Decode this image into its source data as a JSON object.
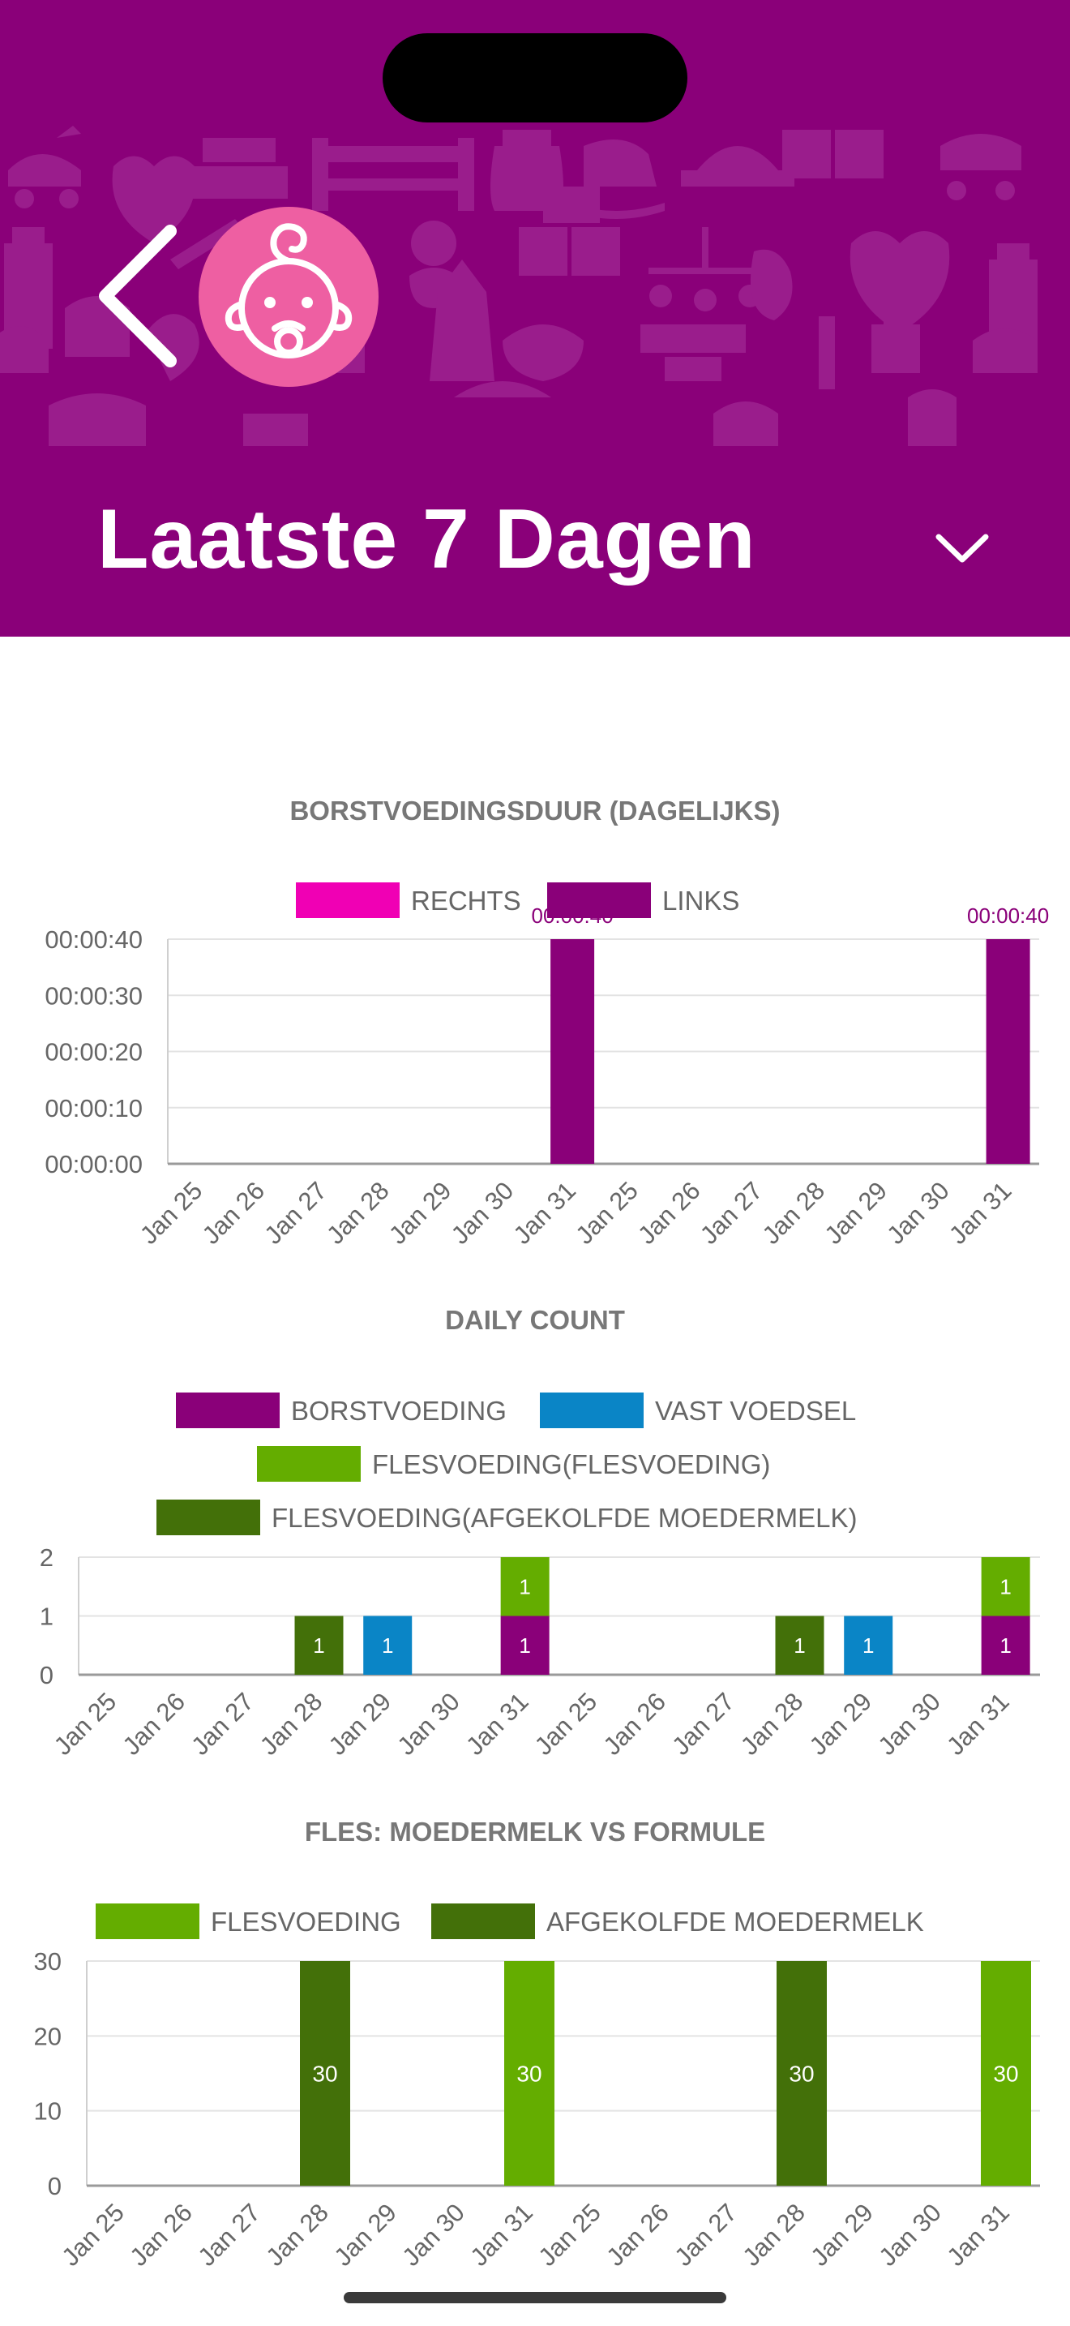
{
  "header": {
    "title": "Laatste 7 Dagen"
  },
  "colors": {
    "header_bg": "#8a0079",
    "avatar_bg": "#ee5fa2",
    "rechts": "#f000b4",
    "links": "#8a0079",
    "borstvoeding": "#8a0079",
    "vast_voedsel": "#0a85c6",
    "flesvoeding": "#64ad00",
    "afgekolfde_moedermelk": "#437009"
  },
  "icons": [
    "back-chevron-icon",
    "baby-face-icon",
    "chevron-down-icon"
  ],
  "chart_data": [
    {
      "type": "bar",
      "title": "BORSTVOEDINGSDUUR (DAGELIJKS)",
      "legend": [
        "RECHTS",
        "LINKS"
      ],
      "categories": [
        "Jan 25",
        "Jan 26",
        "Jan 27",
        "Jan 28",
        "Jan 29",
        "Jan 30",
        "Jan 31",
        "Jan 25",
        "Jan 26",
        "Jan 27",
        "Jan 28",
        "Jan 29",
        "Jan 30",
        "Jan 31"
      ],
      "y_ticks": [
        "00:00:00",
        "00:00:10",
        "00:00:20",
        "00:00:30",
        "00:00:40"
      ],
      "ylim": [
        0,
        40
      ],
      "series": [
        {
          "name": "RECHTS",
          "values": [
            0,
            0,
            0,
            0,
            0,
            0,
            0,
            0,
            0,
            0,
            0,
            0,
            0,
            0
          ]
        },
        {
          "name": "LINKS",
          "values": [
            0,
            0,
            0,
            0,
            0,
            0,
            40,
            0,
            0,
            0,
            0,
            0,
            0,
            40
          ]
        }
      ],
      "data_labels": [
        "00:00:40",
        "00:00:40"
      ],
      "grid": true
    },
    {
      "type": "bar",
      "stacked": true,
      "title": "DAILY COUNT",
      "legend": [
        "BORSTVOEDING",
        "VAST VOEDSEL",
        "FLESVOEDING(FLESVOEDING)",
        "FLESVOEDING(AFGEKOLFDE MOEDERMELK)"
      ],
      "categories": [
        "Jan 25",
        "Jan 26",
        "Jan 27",
        "Jan 28",
        "Jan 29",
        "Jan 30",
        "Jan 31",
        "Jan 25",
        "Jan 26",
        "Jan 27",
        "Jan 28",
        "Jan 29",
        "Jan 30",
        "Jan 31"
      ],
      "y_ticks": [
        "0",
        "1",
        "2"
      ],
      "ylim": [
        0,
        2
      ],
      "series": [
        {
          "name": "BORSTVOEDING",
          "values": [
            0,
            0,
            0,
            0,
            0,
            0,
            1,
            0,
            0,
            0,
            0,
            0,
            0,
            1
          ]
        },
        {
          "name": "VAST VOEDSEL",
          "values": [
            0,
            0,
            0,
            0,
            1,
            0,
            0,
            0,
            0,
            0,
            0,
            1,
            0,
            0
          ]
        },
        {
          "name": "FLESVOEDING(FLESVOEDING)",
          "values": [
            0,
            0,
            0,
            0,
            0,
            0,
            1,
            0,
            0,
            0,
            0,
            0,
            0,
            1
          ]
        },
        {
          "name": "FLESVOEDING(AFGEKOLFDE MOEDERMELK)",
          "values": [
            0,
            0,
            0,
            1,
            0,
            0,
            0,
            0,
            0,
            0,
            1,
            0,
            0,
            0
          ]
        }
      ],
      "grid": true
    },
    {
      "type": "bar",
      "title": "FLES: MOEDERMELK VS FORMULE",
      "legend": [
        "FLESVOEDING",
        "AFGEKOLFDE MOEDERMELK"
      ],
      "categories": [
        "Jan 25",
        "Jan 26",
        "Jan 27",
        "Jan 28",
        "Jan 29",
        "Jan 30",
        "Jan 31",
        "Jan 25",
        "Jan 26",
        "Jan 27",
        "Jan 28",
        "Jan 29",
        "Jan 30",
        "Jan 31"
      ],
      "y_ticks": [
        "0",
        "10",
        "20",
        "30"
      ],
      "ylim": [
        0,
        30
      ],
      "series": [
        {
          "name": "FLESVOEDING",
          "values": [
            0,
            0,
            0,
            0,
            0,
            0,
            30,
            0,
            0,
            0,
            0,
            0,
            0,
            30
          ]
        },
        {
          "name": "AFGEKOLFDE MOEDERMELK",
          "values": [
            0,
            0,
            0,
            30,
            0,
            0,
            0,
            0,
            0,
            0,
            30,
            0,
            0,
            0
          ]
        }
      ],
      "grid": true
    }
  ]
}
